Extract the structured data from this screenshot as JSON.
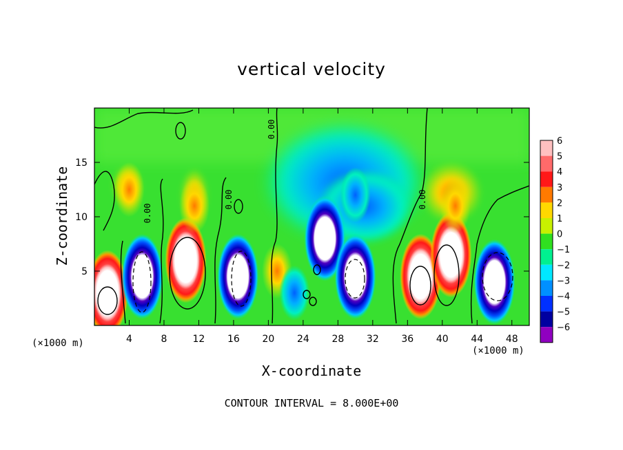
{
  "chart_data": {
    "type": "heatmap",
    "title": "vertical velocity",
    "xlabel": "X-coordinate",
    "ylabel": "Z-coordinate",
    "x_unit_label_left": "(×1000 m)",
    "x_unit_label_right": "(×1000 m)",
    "footer": "CONTOUR INTERVAL = 8.000E+00",
    "xlim": [
      0,
      50
    ],
    "ylim": [
      0,
      20
    ],
    "x_ticks": [
      4,
      8,
      12,
      16,
      20,
      24,
      28,
      32,
      36,
      40,
      44,
      48
    ],
    "x_tick_labels": [
      "4",
      "8",
      "12",
      "16",
      "20",
      "24",
      "28",
      "32",
      "36",
      "40",
      "44",
      "48"
    ],
    "y_ticks": [
      5,
      10,
      15
    ],
    "y_tick_labels": [
      "5",
      "10",
      "15"
    ],
    "colorbar": {
      "levels": [
        6,
        5,
        4,
        3,
        2,
        1,
        0,
        -1,
        -2,
        -3,
        -4,
        -5,
        -6
      ],
      "labels": [
        "6",
        "5",
        "4",
        "3",
        "2",
        "1",
        "0",
        "−1",
        "−2",
        "−3",
        "−4",
        "−5",
        "−6"
      ],
      "colors": [
        "#ffc0c0",
        "#ff6a6a",
        "#ff1818",
        "#ff7a00",
        "#ffd800",
        "#c8f000",
        "#30e020",
        "#00f090",
        "#00e8ff",
        "#0090ff",
        "#0030ff",
        "#0000a0",
        "#9000c0"
      ]
    },
    "contour_labels": [
      "0.00",
      "0.00",
      "0.00",
      "0.00",
      "0.00"
    ],
    "cells": [
      {
        "x": 1.5,
        "z": 3.0,
        "value": 6
      },
      {
        "x": 5.5,
        "z": 4.5,
        "value": -6
      },
      {
        "x": 10.5,
        "z": 6.0,
        "value": 6
      },
      {
        "x": 16.5,
        "z": 4.5,
        "value": -6
      },
      {
        "x": 21.0,
        "z": 5.0,
        "value": 4
      },
      {
        "x": 23.0,
        "z": 3.0,
        "value": -4
      },
      {
        "x": 26.5,
        "z": 8.0,
        "value": -6
      },
      {
        "x": 30.0,
        "z": 4.5,
        "value": -6
      },
      {
        "x": 37.5,
        "z": 4.5,
        "value": 6
      },
      {
        "x": 41.0,
        "z": 6.5,
        "value": 6
      },
      {
        "x": 46.0,
        "z": 4.0,
        "value": -6
      },
      {
        "x": 30.0,
        "z": 12.0,
        "value": -2
      },
      {
        "x": 41.5,
        "z": 11.0,
        "value": 3
      },
      {
        "x": 4.0,
        "z": 12.5,
        "value": 2
      },
      {
        "x": 11.5,
        "z": 11.0,
        "value": 3
      }
    ]
  }
}
